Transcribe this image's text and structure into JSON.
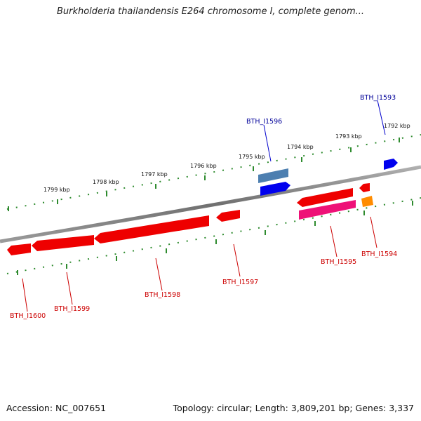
{
  "title": "Burkholderia thailandensis E264 chromosome I, complete genom...",
  "footer": {
    "accession": "Accession: NC_007651",
    "summary": "Topology: circular; Length: 3,809,201 bp; Genes: 3,337"
  },
  "scale": {
    "unit": "kbp",
    "ticks": [
      "1799 kbp",
      "1798 kbp",
      "1797 kbp",
      "1796 kbp",
      "1795 kbp",
      "1794 kbp",
      "1793 kbp",
      "1792 kbp"
    ]
  },
  "genes": [
    {
      "label": "BTH_I1593",
      "color": "#0000ee",
      "strand": "outer"
    },
    {
      "label": "BTH_I1596",
      "color": "#0000ee",
      "strand": "outer"
    },
    {
      "label": "BTH_I1594",
      "color": "#ff8c00",
      "strand": "inner"
    },
    {
      "label": "BTH_I1595",
      "color": "#ee1177",
      "strand": "inner"
    },
    {
      "label": "BTH_I1597",
      "color": "#ee0000",
      "strand": "inner"
    },
    {
      "label": "BTH_I1598",
      "color": "#ee0000",
      "strand": "inner"
    },
    {
      "label": "BTH_I1599",
      "color": "#ee0000",
      "strand": "inner"
    },
    {
      "label": "BTH_I1600",
      "color": "#ee0000",
      "strand": "inner"
    }
  ],
  "colors": {
    "backbone": "#808080",
    "tick": "#2e8b2e",
    "forward_gene": "#0000ee",
    "reverse_gene": "#ee0000",
    "label_forward": "#000099",
    "label_reverse": "#cc0000"
  }
}
